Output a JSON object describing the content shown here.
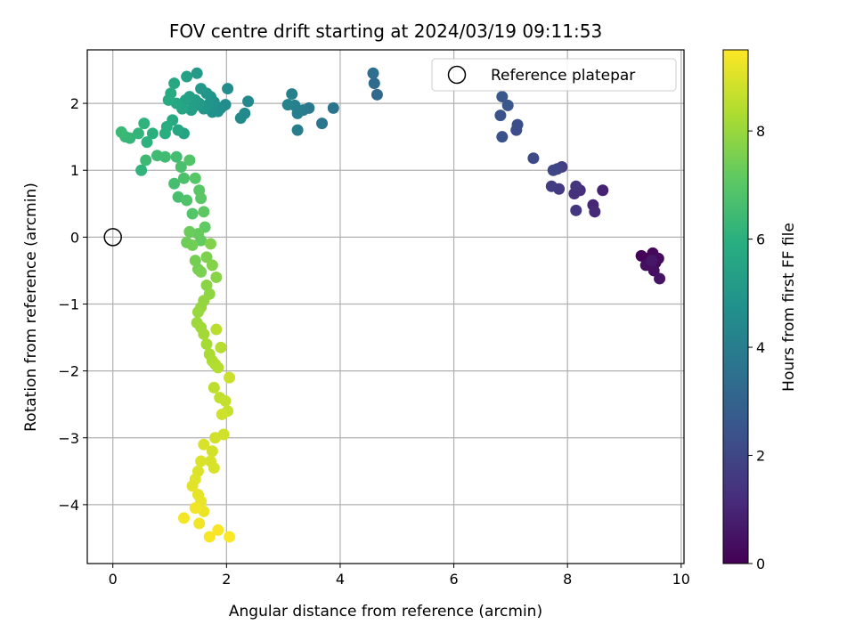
{
  "chart_data": {
    "type": "scatter",
    "title": "FOV centre drift starting at 2024/03/19 09:11:53",
    "xlabel": "Angular distance from reference (arcmin)",
    "ylabel": "Rotation from reference (arcmin)",
    "xlim": [
      -0.45,
      10.05
    ],
    "ylim": [
      -4.88,
      2.8
    ],
    "xticks": [
      0,
      2,
      4,
      6,
      8,
      10
    ],
    "yticks": [
      -4,
      -3,
      -2,
      -1,
      0,
      1,
      2
    ],
    "grid": true,
    "colormap": "viridis",
    "colorbar": {
      "label": "Hours from first FF file",
      "range": [
        0,
        9.5
      ],
      "ticks": [
        0,
        2,
        4,
        6,
        8
      ]
    },
    "legend": {
      "placement": "top-right",
      "entries": [
        {
          "label": "Reference platepar",
          "marker": "open-circle"
        }
      ]
    },
    "reference_point": {
      "x": 0,
      "y": 0
    },
    "points": [
      [
        9.3,
        -0.28,
        0.05
      ],
      [
        9.42,
        -0.32,
        0.1
      ],
      [
        9.5,
        -0.24,
        0.15
      ],
      [
        9.55,
        -0.38,
        0.2
      ],
      [
        9.45,
        -0.42,
        0.25
      ],
      [
        9.6,
        -0.32,
        0.3
      ],
      [
        9.38,
        -0.42,
        0.35
      ],
      [
        9.52,
        -0.5,
        0.4
      ],
      [
        9.62,
        -0.62,
        0.5
      ],
      [
        9.48,
        -0.35,
        0.6
      ],
      [
        8.62,
        0.7,
        0.9
      ],
      [
        8.45,
        0.48,
        1.0
      ],
      [
        8.48,
        0.38,
        1.1
      ],
      [
        8.22,
        0.7,
        1.2
      ],
      [
        8.12,
        0.65,
        1.3
      ],
      [
        8.15,
        0.76,
        1.4
      ],
      [
        8.15,
        0.4,
        1.5
      ],
      [
        7.85,
        0.72,
        1.6
      ],
      [
        7.72,
        0.76,
        1.7
      ],
      [
        7.9,
        1.05,
        1.8
      ],
      [
        7.82,
        1.02,
        1.9
      ],
      [
        7.75,
        1.0,
        2.0
      ],
      [
        7.4,
        1.18,
        2.1
      ],
      [
        7.1,
        1.6,
        2.2
      ],
      [
        7.12,
        1.68,
        2.25
      ],
      [
        6.85,
        1.5,
        2.35
      ],
      [
        6.82,
        1.82,
        2.45
      ],
      [
        6.95,
        1.97,
        2.55
      ],
      [
        6.85,
        2.1,
        2.6
      ],
      [
        4.65,
        2.13,
        3.2
      ],
      [
        4.6,
        2.3,
        3.3
      ],
      [
        4.58,
        2.45,
        3.4
      ],
      [
        3.88,
        1.93,
        3.6
      ],
      [
        3.68,
        1.7,
        3.7
      ],
      [
        3.45,
        1.93,
        3.8
      ],
      [
        3.35,
        1.9,
        3.9
      ],
      [
        3.25,
        1.6,
        4.0
      ],
      [
        3.25,
        1.85,
        4.05
      ],
      [
        3.2,
        1.97,
        4.1
      ],
      [
        3.15,
        2.14,
        4.15
      ],
      [
        3.08,
        1.98,
        4.2
      ],
      [
        2.38,
        2.03,
        4.4
      ],
      [
        2.32,
        1.85,
        4.45
      ],
      [
        2.25,
        1.78,
        4.5
      ],
      [
        2.02,
        2.22,
        4.55
      ],
      [
        1.98,
        1.98,
        4.6
      ],
      [
        1.9,
        1.93,
        4.65
      ],
      [
        1.85,
        1.88,
        4.7
      ],
      [
        1.78,
        2.02,
        4.75
      ],
      [
        1.75,
        1.87,
        4.8
      ],
      [
        1.72,
        2.1,
        4.85
      ],
      [
        1.68,
        1.98,
        4.9
      ],
      [
        1.65,
        2.15,
        4.95
      ],
      [
        1.6,
        1.92,
        5.0
      ],
      [
        1.55,
        2.22,
        5.05
      ],
      [
        1.52,
        2.0,
        5.1
      ],
      [
        1.48,
        2.45,
        5.15
      ],
      [
        1.45,
        2.05,
        5.2
      ],
      [
        1.42,
        1.95,
        5.25
      ],
      [
        1.38,
        1.9,
        5.3
      ],
      [
        1.35,
        2.1,
        5.35
      ],
      [
        1.3,
        2.4,
        5.4
      ],
      [
        1.28,
        2.05,
        5.45
      ],
      [
        1.25,
        1.55,
        5.5
      ],
      [
        1.22,
        1.92,
        5.55
      ],
      [
        1.15,
        1.6,
        5.6
      ],
      [
        1.12,
        2.0,
        5.65
      ],
      [
        1.08,
        2.3,
        5.7
      ],
      [
        1.05,
        1.75,
        5.75
      ],
      [
        1.02,
        2.15,
        5.8
      ],
      [
        0.98,
        2.05,
        5.85
      ],
      [
        0.95,
        1.65,
        5.9
      ],
      [
        0.92,
        1.55,
        5.95
      ],
      [
        0.7,
        1.55,
        6.0
      ],
      [
        0.6,
        1.42,
        6.05
      ],
      [
        0.55,
        1.7,
        6.1
      ],
      [
        0.5,
        1.0,
        6.15
      ],
      [
        0.45,
        1.55,
        6.2
      ],
      [
        0.3,
        1.48,
        6.25
      ],
      [
        0.22,
        1.5,
        6.3
      ],
      [
        0.15,
        1.57,
        6.35
      ],
      [
        0.58,
        1.15,
        6.4
      ],
      [
        0.78,
        1.22,
        6.45
      ],
      [
        0.92,
        1.2,
        6.5
      ],
      [
        1.12,
        1.2,
        6.55
      ],
      [
        1.08,
        0.8,
        6.6
      ],
      [
        1.15,
        0.6,
        6.65
      ],
      [
        1.2,
        1.05,
        6.7
      ],
      [
        1.25,
        0.88,
        6.75
      ],
      [
        1.3,
        0.55,
        6.8
      ],
      [
        1.35,
        1.15,
        6.85
      ],
      [
        1.4,
        0.35,
        6.9
      ],
      [
        1.45,
        0.88,
        6.95
      ],
      [
        1.52,
        0.7,
        7.0
      ],
      [
        1.55,
        0.58,
        7.05
      ],
      [
        1.6,
        0.38,
        7.1
      ],
      [
        1.62,
        0.15,
        7.15
      ],
      [
        1.55,
        -0.05,
        7.2
      ],
      [
        1.5,
        0.05,
        7.25
      ],
      [
        1.35,
        0.08,
        7.3
      ],
      [
        1.3,
        -0.08,
        7.35
      ],
      [
        1.4,
        -0.12,
        7.4
      ],
      [
        1.45,
        -0.35,
        7.45
      ],
      [
        1.5,
        -0.48,
        7.5
      ],
      [
        1.55,
        -0.52,
        7.55
      ],
      [
        1.65,
        -0.3,
        7.6
      ],
      [
        1.72,
        -0.1,
        7.65
      ],
      [
        1.75,
        -0.42,
        7.7
      ],
      [
        1.82,
        -0.6,
        7.75
      ],
      [
        1.65,
        -0.72,
        7.8
      ],
      [
        1.7,
        -0.85,
        7.85
      ],
      [
        1.6,
        -0.95,
        7.9
      ],
      [
        1.55,
        -1.05,
        7.95
      ],
      [
        1.5,
        -1.12,
        8.0
      ],
      [
        1.48,
        -1.28,
        8.05
      ],
      [
        1.55,
        -1.35,
        8.1
      ],
      [
        1.6,
        -1.45,
        8.15
      ],
      [
        1.65,
        -1.6,
        8.2
      ],
      [
        1.7,
        -1.75,
        8.25
      ],
      [
        1.75,
        -1.85,
        8.3
      ],
      [
        1.8,
        -1.9,
        8.35
      ],
      [
        1.85,
        -1.95,
        8.4
      ],
      [
        1.9,
        -1.65,
        8.45
      ],
      [
        1.82,
        -1.38,
        8.5
      ],
      [
        1.78,
        -2.25,
        8.55
      ],
      [
        1.88,
        -2.4,
        8.6
      ],
      [
        1.98,
        -2.45,
        8.65
      ],
      [
        2.02,
        -2.6,
        8.7
      ],
      [
        2.05,
        -2.1,
        8.75
      ],
      [
        1.92,
        -2.65,
        8.8
      ],
      [
        1.95,
        -2.95,
        8.82
      ],
      [
        1.8,
        -3.0,
        8.85
      ],
      [
        1.75,
        -3.2,
        8.88
      ],
      [
        1.72,
        -3.35,
        8.9
      ],
      [
        1.78,
        -3.45,
        8.93
      ],
      [
        1.6,
        -3.1,
        8.95
      ],
      [
        1.55,
        -3.35,
        8.98
      ],
      [
        1.5,
        -3.5,
        9.0
      ],
      [
        1.45,
        -3.62,
        9.05
      ],
      [
        1.4,
        -3.72,
        9.1
      ],
      [
        1.5,
        -3.85,
        9.15
      ],
      [
        1.55,
        -3.95,
        9.2
      ],
      [
        1.6,
        -4.1,
        9.25
      ],
      [
        1.52,
        -4.28,
        9.3
      ],
      [
        1.45,
        -4.05,
        9.32
      ],
      [
        1.25,
        -4.2,
        9.35
      ],
      [
        1.7,
        -4.48,
        9.4
      ],
      [
        1.85,
        -4.38,
        9.42
      ],
      [
        2.05,
        -4.48,
        9.45
      ]
    ]
  }
}
